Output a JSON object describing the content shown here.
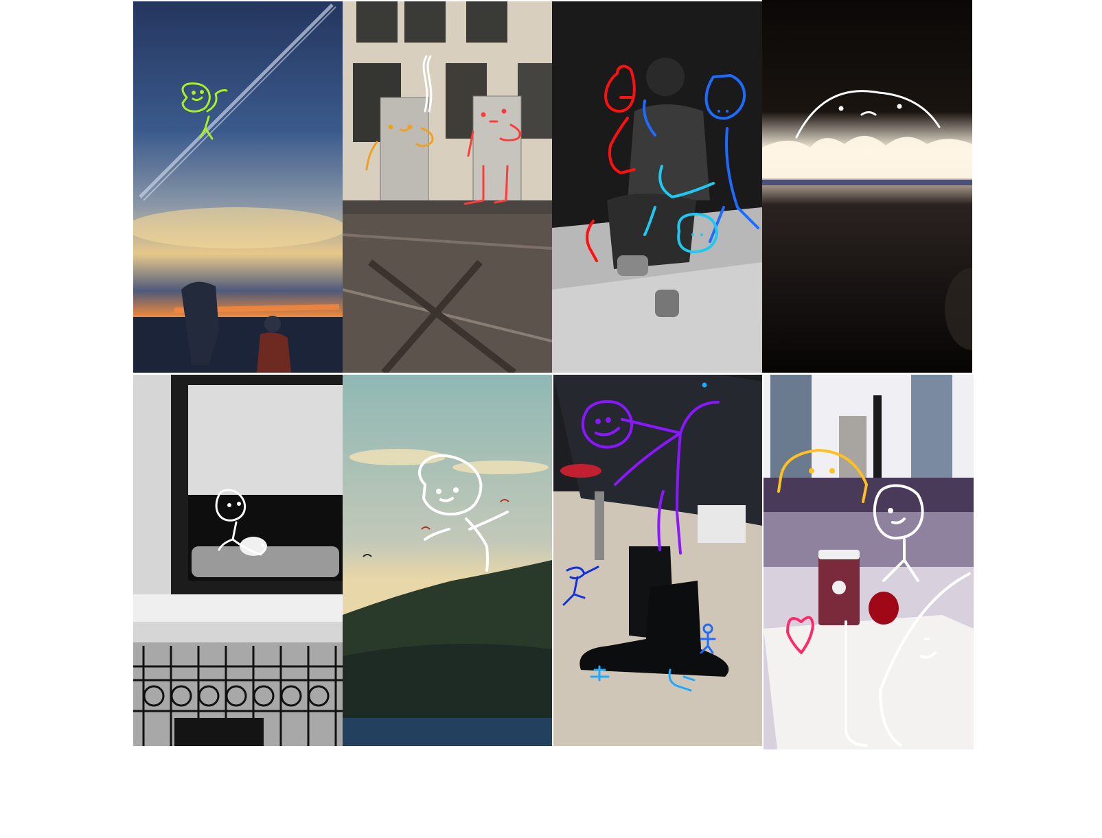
{
  "gallery": {
    "layout": "4x2 photo grid",
    "tiles": [
      {
        "subject": "sunset-sky",
        "doodle_color": "#a8f020"
      },
      {
        "subject": "rooftop-boxes",
        "doodle_color": "#ff3b3b"
      },
      {
        "subject": "seated-man-bw",
        "doodle_color": "#1e6bff"
      },
      {
        "subject": "fire-flames",
        "doodle_color": "#ffffff"
      },
      {
        "subject": "dog-window-bw",
        "doodle_color": "#ffffff"
      },
      {
        "subject": "hills-paragliders",
        "doodle_color": "#ffffff"
      },
      {
        "subject": "boots",
        "doodle_color": "#8a17ff"
      },
      {
        "subject": "coffee-window",
        "doodle_color": "#ffffff"
      }
    ]
  }
}
